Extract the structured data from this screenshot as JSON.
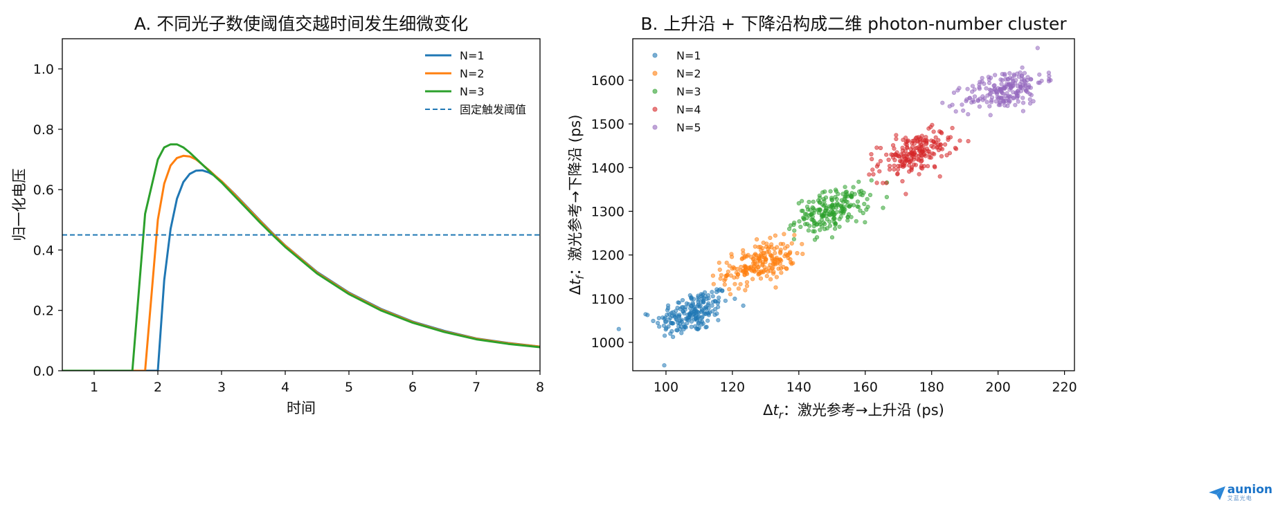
{
  "chart_data": [
    {
      "type": "line",
      "title": "A. 不同光子数使阈值交越时间发生细微变化",
      "xlabel": "时间",
      "ylabel": "归一化电压",
      "xlim": [
        0.5,
        8.0
      ],
      "ylim": [
        0.0,
        1.1
      ],
      "xticks": [
        "1",
        "2",
        "3",
        "4",
        "5",
        "6",
        "7",
        "8"
      ],
      "yticks": [
        "0.0",
        "0.2",
        "0.4",
        "0.6",
        "0.8",
        "1.0"
      ],
      "legend_position": "top-right",
      "grid": false,
      "x": [
        0.5,
        1.6,
        1.8,
        2.0,
        2.1,
        2.2,
        2.3,
        2.4,
        2.5,
        2.6,
        2.7,
        2.8,
        2.9,
        3.0,
        3.2,
        3.4,
        3.6,
        3.8,
        4.0,
        4.5,
        5.0,
        5.5,
        6.0,
        6.5,
        7.0,
        7.5,
        8.0
      ],
      "series": [
        {
          "name": "N=1",
          "color": "#1f77b4",
          "values": [
            0,
            0,
            0,
            0,
            0.3,
            0.47,
            0.57,
            0.625,
            0.652,
            0.663,
            0.664,
            0.657,
            0.645,
            0.628,
            0.587,
            0.543,
            0.499,
            0.456,
            0.415,
            0.327,
            0.259,
            0.205,
            0.163,
            0.132,
            0.107,
            0.092,
            0.08
          ]
        },
        {
          "name": "N=2",
          "color": "#ff7f0e",
          "values": [
            0,
            0,
            0,
            0.5,
            0.62,
            0.68,
            0.705,
            0.712,
            0.71,
            0.7,
            0.683,
            0.665,
            0.646,
            0.628,
            0.585,
            0.541,
            0.497,
            0.454,
            0.414,
            0.325,
            0.257,
            0.203,
            0.161,
            0.13,
            0.106,
            0.091,
            0.08
          ]
        },
        {
          "name": "N=3",
          "color": "#2ca02c",
          "values": [
            0,
            0,
            0.52,
            0.7,
            0.74,
            0.75,
            0.75,
            0.74,
            0.723,
            0.703,
            0.683,
            0.663,
            0.643,
            0.624,
            0.58,
            0.536,
            0.492,
            0.45,
            0.41,
            0.322,
            0.254,
            0.2,
            0.159,
            0.128,
            0.104,
            0.089,
            0.078
          ]
        }
      ],
      "threshold": {
        "name": "固定触发阈值",
        "value": 0.45,
        "color": "#1f77b4",
        "style": "dashed"
      }
    },
    {
      "type": "scatter",
      "title": "B. 上升沿 + 下降沿构成二维 photon-number cluster",
      "xlabel_prefix": "Δ",
      "xlabel_var": "t",
      "xlabel_sub": "r",
      "xlabel_rest": "：激光参考→上升沿 (ps)",
      "ylabel_prefix": "Δ",
      "ylabel_var": "t",
      "ylabel_sub": "f",
      "ylabel_rest": "：激光参考→下降沿 (ps)",
      "xlim": [
        90,
        223
      ],
      "ylim": [
        935,
        1695
      ],
      "xticks": [
        100,
        120,
        140,
        160,
        180,
        200,
        220
      ],
      "yticks": [
        1000,
        1100,
        1200,
        1300,
        1400,
        1500,
        1600
      ],
      "legend_position": "top-left",
      "grid": false,
      "series": [
        {
          "name": "N=1",
          "color": "#1f77b4",
          "center": [
            108,
            1068
          ],
          "spread": [
            5.5,
            27
          ],
          "n": 200
        },
        {
          "name": "N=2",
          "color": "#ff7f0e",
          "center": [
            128,
            1180
          ],
          "spread": [
            5.5,
            25
          ],
          "n": 200
        },
        {
          "name": "N=3",
          "color": "#2ca02c",
          "center": [
            150,
            1302
          ],
          "spread": [
            5.5,
            25
          ],
          "n": 200
        },
        {
          "name": "N=4",
          "color": "#d62728",
          "center": [
            175,
            1432
          ],
          "spread": [
            5.5,
            25
          ],
          "n": 200
        },
        {
          "name": "N=5",
          "color": "#9467bd",
          "center": [
            202,
            1578
          ],
          "spread": [
            6,
            25
          ],
          "n": 200
        }
      ]
    }
  ],
  "logo": {
    "word": "aunion",
    "sub": "艾蓝光电"
  }
}
